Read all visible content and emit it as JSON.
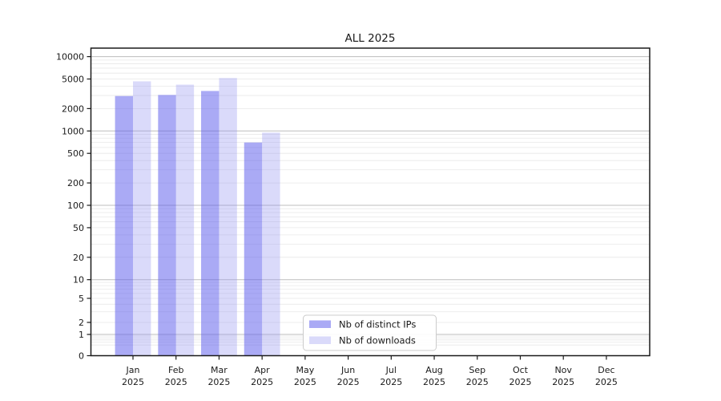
{
  "title": "ALL 2025",
  "chart_data": {
    "type": "bar",
    "title": "ALL 2025",
    "xlabel": "",
    "ylabel": "",
    "categories": [
      "Jan 2025",
      "Feb 2025",
      "Mar 2025",
      "Apr 2025",
      "May 2025",
      "Jun 2025",
      "Jul 2025",
      "Aug 2025",
      "Sep 2025",
      "Oct 2025",
      "Nov 2025",
      "Dec 2025"
    ],
    "series": [
      {
        "name": "Nb of distinct IPs",
        "values": [
          2950,
          3050,
          3450,
          700,
          null,
          null,
          null,
          null,
          null,
          null,
          null,
          null
        ]
      },
      {
        "name": "Nb of downloads",
        "values": [
          4650,
          4200,
          5150,
          950,
          null,
          null,
          null,
          null,
          null,
          null,
          null,
          null
        ]
      }
    ],
    "yticks": [
      0,
      1,
      2,
      5,
      10,
      20,
      50,
      100,
      200,
      500,
      1000,
      2000,
      5000,
      10000
    ],
    "ylim": [
      0,
      13000
    ],
    "yscale": "log-like (symlog: logarithmic above 10, compressed linear-ish region 0-10)",
    "grid": "horizontal major and minor gridlines",
    "legend_position": "bottom center"
  },
  "legend": {
    "items": [
      {
        "label": "Nb of distinct IPs"
      },
      {
        "label": "Nb of downloads"
      }
    ]
  },
  "colors": {
    "ips_bar": "rgba(92,92,235,0.52)",
    "downloads_bar": "rgba(148,148,240,0.35)",
    "major_grid": "#bdbdbd",
    "minor_grid": "#e8e8e8",
    "axis": "#1a1a1a",
    "text": "#1a1a1a",
    "legend_border": "#cccccc",
    "background": "#ffffff"
  }
}
